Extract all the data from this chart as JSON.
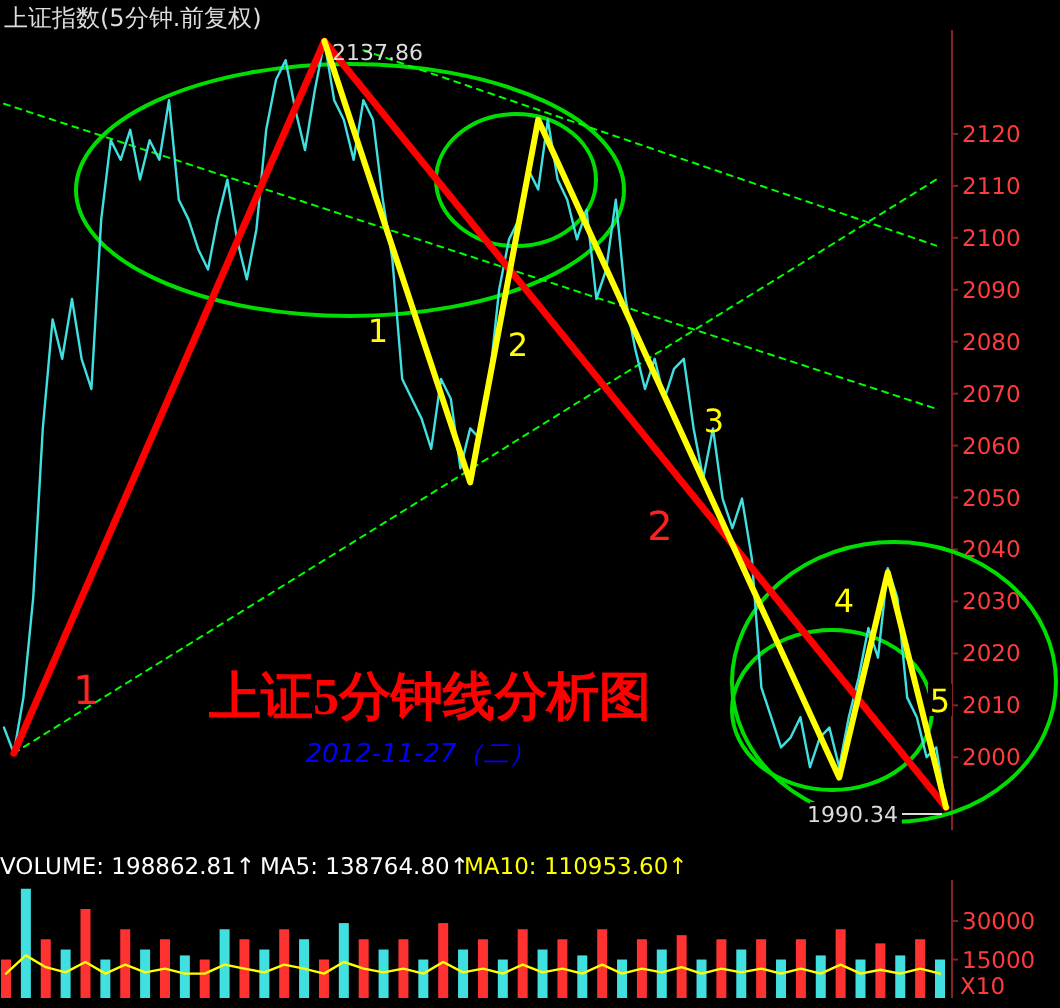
{
  "chart_data": [
    {
      "type": "line",
      "title": "上证指数(5分钟.前复权)",
      "subtitle": "上证5分钟线分析图",
      "categories": [
        null,
        null,
        null,
        null,
        null,
        null,
        null,
        null,
        null,
        null,
        null,
        null,
        null,
        null,
        null,
        null,
        null,
        null,
        null,
        null,
        null,
        null,
        null,
        null,
        null,
        null,
        null,
        null,
        null,
        null,
        null,
        null,
        null,
        null,
        null,
        null,
        null,
        null,
        null,
        null,
        null,
        null,
        null,
        null,
        null,
        null,
        null,
        null,
        null,
        null,
        null,
        null,
        null,
        null,
        null,
        null,
        null,
        null,
        null,
        null,
        null,
        null,
        null,
        null,
        null,
        null,
        null,
        null,
        null,
        null,
        null,
        null,
        null,
        null,
        null,
        null,
        null,
        null,
        null,
        null,
        null,
        null,
        null,
        null,
        null,
        null,
        null,
        null,
        null,
        null,
        null,
        null,
        null,
        null,
        null,
        null,
        null,
        null
      ],
      "ylim": [
        1986,
        2140
      ],
      "yticks": [
        2000,
        2010,
        2020,
        2030,
        2040,
        2050,
        2060,
        2070,
        2080,
        2090,
        2100,
        2110,
        2120
      ],
      "tick_labels": "y",
      "series": [
        {
          "color": "#40e0e0",
          "values": [
            2005.7,
            2000.8,
            2011.5,
            2030.7,
            2063.3,
            2084.3,
            2076.7,
            2088.2,
            2076.7,
            2070.9,
            2103.5,
            2118.8,
            2115.0,
            2120.8,
            2111.2,
            2118.8,
            2115.0,
            2126.5,
            2107.3,
            2103.5,
            2097.8,
            2093.9,
            2103.5,
            2111.2,
            2099.7,
            2092.0,
            2101.6,
            2120.8,
            2130.4,
            2134.2,
            2124.6,
            2116.9,
            2128.4,
            2137.86,
            2126.5,
            2122.7,
            2115.0,
            2126.5,
            2122.7,
            2107.3,
            2095.8,
            2072.8,
            2069.0,
            2065.2,
            2059.4,
            2072.8,
            2069.0,
            2055.6,
            2063.3,
            2061.3,
            2072.8,
            2090.1,
            2099.7,
            2103.5,
            2113.1,
            2109.3,
            2122.7,
            2111.2,
            2107.3,
            2099.7,
            2105.4,
            2088.2,
            2093.9,
            2107.3,
            2088.2,
            2078.6,
            2070.9,
            2076.7,
            2069.0,
            2074.8,
            2076.7,
            2063.3,
            2053.7,
            2063.3,
            2049.8,
            2044.1,
            2049.8,
            2038.3,
            2013.4,
            2007.7,
            2001.9,
            2003.8,
            2007.7,
            1998.1,
            2003.8,
            2005.7,
            1998.1,
            2007.7,
            2015.3,
            2024.9,
            2019.2,
            2036.4,
            2030.7,
            2011.5,
            2007.7,
            2000.0,
            2001.9,
            1990.34
          ]
        },
        {
          "color": "#ff0000",
          "values": [
            null,
            2000.8,
            null,
            null,
            null,
            null,
            null,
            null,
            null,
            null,
            null,
            null,
            null,
            null,
            null,
            null,
            null,
            null,
            null,
            null,
            null,
            null,
            null,
            null,
            null,
            null,
            null,
            null,
            null,
            null,
            null,
            null,
            null,
            2137.86,
            null,
            null,
            null,
            null,
            null,
            null,
            null,
            null,
            null,
            null,
            null,
            null,
            null,
            null,
            null,
            null,
            null,
            null,
            null,
            null,
            null,
            null,
            null,
            null,
            null,
            null,
            null,
            null,
            null,
            null,
            null,
            null,
            null,
            null,
            null,
            null,
            null,
            null,
            null,
            null,
            null,
            null,
            null,
            null,
            null,
            null,
            null,
            null,
            null,
            null,
            null,
            null,
            null,
            null,
            null,
            null,
            null,
            null,
            null,
            null,
            null,
            null,
            null,
            1990.34
          ]
        },
        {
          "color": "#ffff00",
          "values": [
            null,
            null,
            null,
            null,
            null,
            null,
            null,
            null,
            null,
            null,
            null,
            null,
            null,
            null,
            null,
            null,
            null,
            null,
            null,
            null,
            null,
            null,
            null,
            null,
            null,
            null,
            null,
            null,
            null,
            null,
            null,
            null,
            null,
            2137.86,
            null,
            null,
            null,
            null,
            null,
            null,
            null,
            null,
            null,
            null,
            null,
            null,
            null,
            null,
            2052.9,
            null,
            null,
            null,
            null,
            null,
            null,
            2122.7,
            null,
            null,
            null,
            null,
            null,
            null,
            null,
            null,
            null,
            null,
            null,
            null,
            null,
            null,
            null,
            null,
            null,
            null,
            null,
            null,
            null,
            null,
            null,
            null,
            null,
            null,
            null,
            null,
            null,
            null,
            1996.1,
            null,
            null,
            null,
            null,
            2035.6,
            null,
            null,
            null,
            null,
            null,
            1990.34
          ]
        },
        {
          "color": "#00ff00",
          "line_style": "dashed",
          "values": [
            2125.8,
            null,
            null,
            null,
            null,
            null,
            null,
            null,
            null,
            null,
            null,
            null,
            null,
            null,
            null,
            null,
            null,
            null,
            null,
            null,
            null,
            null,
            null,
            null,
            null,
            null,
            null,
            null,
            null,
            null,
            null,
            null,
            null,
            null,
            null,
            null,
            null,
            null,
            null,
            null,
            null,
            null,
            null,
            null,
            null,
            null,
            null,
            null,
            null,
            null,
            null,
            null,
            null,
            null,
            null,
            null,
            null,
            null,
            null,
            null,
            null,
            null,
            null,
            null,
            null,
            null,
            null,
            null,
            null,
            null,
            null,
            null,
            null,
            null,
            null,
            null,
            null,
            null,
            null,
            null,
            null,
            null,
            null,
            null,
            null,
            null,
            null,
            null,
            null,
            null,
            null,
            null,
            null,
            null,
            null,
            null,
            2067.1,
            null
          ]
        },
        {
          "color": "#00ff00",
          "line_style": "dashed",
          "values": [
            null,
            null,
            null,
            null,
            null,
            null,
            null,
            null,
            null,
            null,
            null,
            null,
            null,
            null,
            null,
            null,
            null,
            null,
            null,
            null,
            null,
            null,
            null,
            null,
            null,
            null,
            null,
            null,
            null,
            null,
            null,
            null,
            null,
            null,
            null,
            null,
            null,
            2136.1,
            null,
            null,
            null,
            null,
            null,
            null,
            null,
            null,
            null,
            null,
            null,
            null,
            null,
            null,
            null,
            null,
            null,
            null,
            null,
            null,
            null,
            null,
            null,
            null,
            null,
            null,
            null,
            null,
            null,
            null,
            null,
            null,
            null,
            null,
            null,
            null,
            null,
            null,
            null,
            null,
            null,
            null,
            null,
            null,
            null,
            null,
            null,
            null,
            null,
            null,
            null,
            null,
            null,
            null,
            null,
            null,
            null,
            null,
            2098.5,
            null
          ]
        },
        {
          "color": "#00ff00",
          "line_style": "dashed",
          "values": [
            null,
            2000.8,
            null,
            null,
            null,
            null,
            null,
            null,
            null,
            null,
            null,
            null,
            null,
            null,
            null,
            null,
            null,
            null,
            null,
            null,
            null,
            null,
            null,
            null,
            null,
            null,
            null,
            null,
            null,
            null,
            null,
            null,
            null,
            null,
            null,
            null,
            null,
            null,
            null,
            null,
            null,
            null,
            null,
            null,
            null,
            null,
            null,
            null,
            null,
            null,
            null,
            null,
            null,
            null,
            null,
            null,
            null,
            null,
            null,
            null,
            null,
            null,
            null,
            null,
            null,
            null,
            null,
            null,
            null,
            null,
            null,
            null,
            null,
            null,
            null,
            null,
            null,
            null,
            null,
            null,
            null,
            null,
            null,
            null,
            null,
            null,
            null,
            null,
            null,
            null,
            null,
            null,
            null,
            null,
            null,
            null,
            2111.2,
            null
          ]
        }
      ],
      "annotations": [
        "2137.86",
        "1990.34",
        "1",
        "2",
        "1",
        "2",
        "3",
        "4",
        "5",
        "2012-11-27（二）"
      ]
    },
    {
      "type": "bar",
      "categories": [
        null,
        null,
        null,
        null,
        null,
        null,
        null,
        null,
        null,
        null,
        null,
        null,
        null,
        null,
        null,
        null,
        null,
        null,
        null,
        null,
        null,
        null,
        null,
        null,
        null,
        null,
        null,
        null,
        null,
        null,
        null,
        null,
        null,
        null,
        null,
        null,
        null,
        null,
        null,
        null,
        null,
        null,
        null,
        null,
        null,
        null,
        null,
        null
      ],
      "ylim": [
        0,
        46000
      ],
      "yticks": [
        15000,
        30000
      ],
      "tick_labels": "y",
      "series": [
        {
          "values": [
            15000,
            42600,
            22900,
            18900,
            34700,
            15000,
            26800,
            18900,
            22900,
            16600,
            15000,
            26800,
            22900,
            18900,
            26800,
            22900,
            15000,
            29200,
            22900,
            18900,
            22900,
            15000,
            29200,
            18900,
            22900,
            15000,
            26800,
            18900,
            22900,
            16600,
            26800,
            15000,
            22900,
            18900,
            24500,
            15000,
            22900,
            18900,
            22900,
            15000,
            22900,
            16600,
            26800,
            15000,
            21300,
            16600,
            22900,
            15000
          ],
          "colors": [
            "#ff3232",
            "#40e0e0",
            "#ff3232",
            "#40e0e0",
            "#ff3232",
            "#40e0e0",
            "#ff3232",
            "#40e0e0",
            "#ff3232",
            "#40e0e0",
            "#ff3232",
            "#40e0e0",
            "#ff3232",
            "#40e0e0",
            "#ff3232",
            "#40e0e0",
            "#ff3232",
            "#40e0e0",
            "#ff3232",
            "#40e0e0",
            "#ff3232",
            "#40e0e0",
            "#ff3232",
            "#40e0e0",
            "#ff3232",
            "#40e0e0",
            "#ff3232",
            "#40e0e0",
            "#ff3232",
            "#40e0e0",
            "#ff3232",
            "#40e0e0",
            "#ff3232",
            "#40e0e0",
            "#ff3232",
            "#40e0e0",
            "#ff3232",
            "#40e0e0",
            "#ff3232",
            "#40e0e0",
            "#ff3232",
            "#40e0e0",
            "#ff3232",
            "#40e0e0",
            "#ff3232",
            "#40e0e0",
            "#ff3232",
            "#40e0e0"
          ]
        },
        {
          "type": "line",
          "color": "#ffff00",
          "values": [
            9500,
            16600,
            12000,
            10000,
            14000,
            9500,
            13000,
            10000,
            11500,
            9500,
            9500,
            13000,
            11500,
            10000,
            13000,
            11500,
            9500,
            14000,
            11500,
            10000,
            11500,
            9500,
            14000,
            10000,
            11500,
            9500,
            13000,
            10000,
            11500,
            9500,
            13000,
            9500,
            11500,
            10000,
            12000,
            9500,
            11500,
            10000,
            11500,
            9500,
            11500,
            9500,
            13000,
            9500,
            11000,
            9500,
            11500,
            9500
          ]
        }
      ],
      "annotations": [
        "VOLUME: 198862.81↑",
        "MA5: 138764.80↑",
        "MA10: 110953.60↑",
        "X10"
      ]
    }
  ]
}
